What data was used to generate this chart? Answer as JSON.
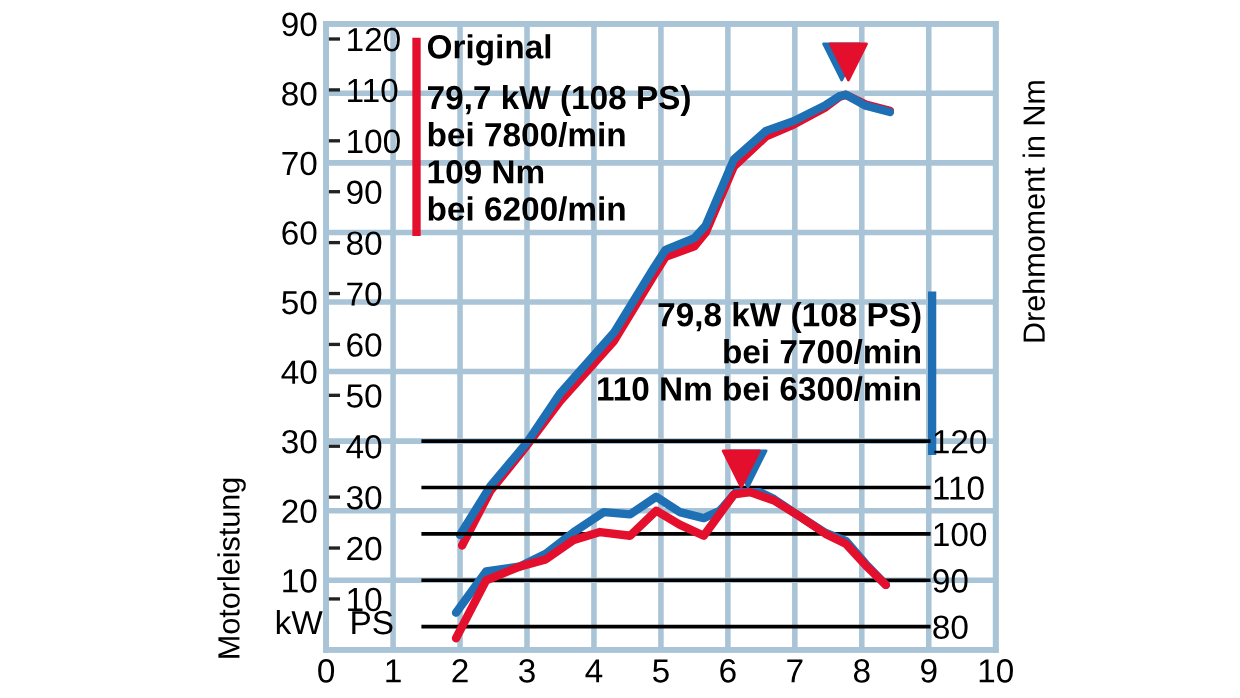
{
  "chart_data": {
    "type": "line",
    "xlim": [
      0,
      10
    ],
    "xticks": [
      0,
      1,
      2,
      3,
      4,
      5,
      6,
      7,
      8,
      9,
      10
    ],
    "ylim": [
      0,
      90
    ],
    "yticks": [
      10,
      20,
      30,
      40,
      50,
      60,
      70,
      80,
      90
    ],
    "y2lim": [
      75,
      210
    ],
    "y2ticks": [
      80,
      90,
      100,
      110,
      120
    ],
    "y3lim": [
      0,
      123
    ],
    "y3ticks": [
      10,
      20,
      30,
      40,
      50,
      60,
      70,
      80,
      90,
      100,
      110,
      120
    ],
    "ylabel": "Motorleistung",
    "y2label": "Drehmoment in Nm",
    "grid": true,
    "legend": false,
    "marker": "none",
    "line_style": "solid",
    "series": [
      {
        "name": "Original",
        "color": "#e30f2d",
        "axis": "y",
        "x": [
          2.03,
          2.45,
          3.0,
          3.49,
          4.3,
          4.9,
          5.07,
          5.5,
          5.67,
          6.09,
          6.57,
          6.98,
          7.46,
          7.67,
          7.76,
          8.06,
          8.42
        ],
        "values": [
          15,
          22.8,
          29.4,
          35.7,
          44.4,
          53.9,
          56.5,
          58,
          60,
          69.5,
          73.8,
          75.5,
          78,
          79.5,
          79.8,
          78.4,
          77.5
        ]
      },
      {
        "color": "#1f6fb5",
        "axis": "y",
        "x": [
          2.0,
          2.45,
          3.0,
          3.49,
          4.3,
          4.9,
          5.07,
          5.5,
          5.67,
          6.09,
          6.57,
          6.98,
          7.46,
          7.67,
          7.76,
          8.06,
          8.42
        ],
        "values": [
          16.5,
          23.5,
          29.8,
          36.8,
          45.6,
          55,
          57.5,
          59.2,
          61,
          70.5,
          74.6,
          76,
          78.3,
          79.6,
          79.8,
          78.2,
          77.3
        ]
      },
      {
        "color": "#1f6fb5",
        "axis": "y2",
        "x": [
          1.94,
          2.39,
          2.9,
          3.28,
          3.7,
          4.15,
          4.54,
          4.93,
          5.28,
          5.64,
          5.88,
          6.12,
          6.48,
          6.69,
          7.07,
          7.46,
          7.76,
          8.06,
          8.36
        ],
        "values": [
          83,
          91.9,
          93,
          95.7,
          100.4,
          104.7,
          104.2,
          108,
          104.7,
          103.4,
          105,
          109,
          109,
          107.5,
          103.8,
          100.2,
          98.5,
          93.5,
          89
        ]
      },
      {
        "color": "#e30f2d",
        "axis": "y2",
        "x": [
          1.94,
          2.39,
          2.9,
          3.28,
          3.7,
          4.09,
          4.54,
          4.93,
          5.28,
          5.64,
          6.09,
          6.33,
          6.69,
          7.07,
          7.46,
          7.76,
          8.06,
          8.36
        ],
        "values": [
          77.5,
          90,
          93,
          94.5,
          98.7,
          100.4,
          99.6,
          105,
          102,
          99.6,
          108.5,
          109,
          107.2,
          103.8,
          100,
          97.9,
          93.2,
          89
        ]
      },
      {
        "type": "scatter",
        "marker": "triangle",
        "color": "#1f6fb5",
        "axis": "y",
        "x": [
          7.7
        ],
        "values": [
          84.5
        ]
      },
      {
        "type": "scatter",
        "marker": "triangle",
        "color": "#e30f2d",
        "axis": "y",
        "x": [
          7.8
        ],
        "values": [
          84.5
        ]
      },
      {
        "type": "scatter",
        "marker": "triangle",
        "color": "#1f6fb5",
        "axis": "y2",
        "x": [
          6.3
        ],
        "values": [
          114
        ]
      },
      {
        "type": "scatter",
        "marker": "triangle",
        "color": "#e30f2d",
        "axis": "y2",
        "x": [
          6.2
        ],
        "values": [
          114
        ]
      }
    ],
    "annotations": [
      "79,7 kW (108 PS)\nbei 7800/min\n109 Nm\nbei 6200/min",
      "79,8 kW (108 PS)\nbei 7700/min\n110 Nm bei 6300/min",
      "kW",
      "PS"
    ]
  }
}
